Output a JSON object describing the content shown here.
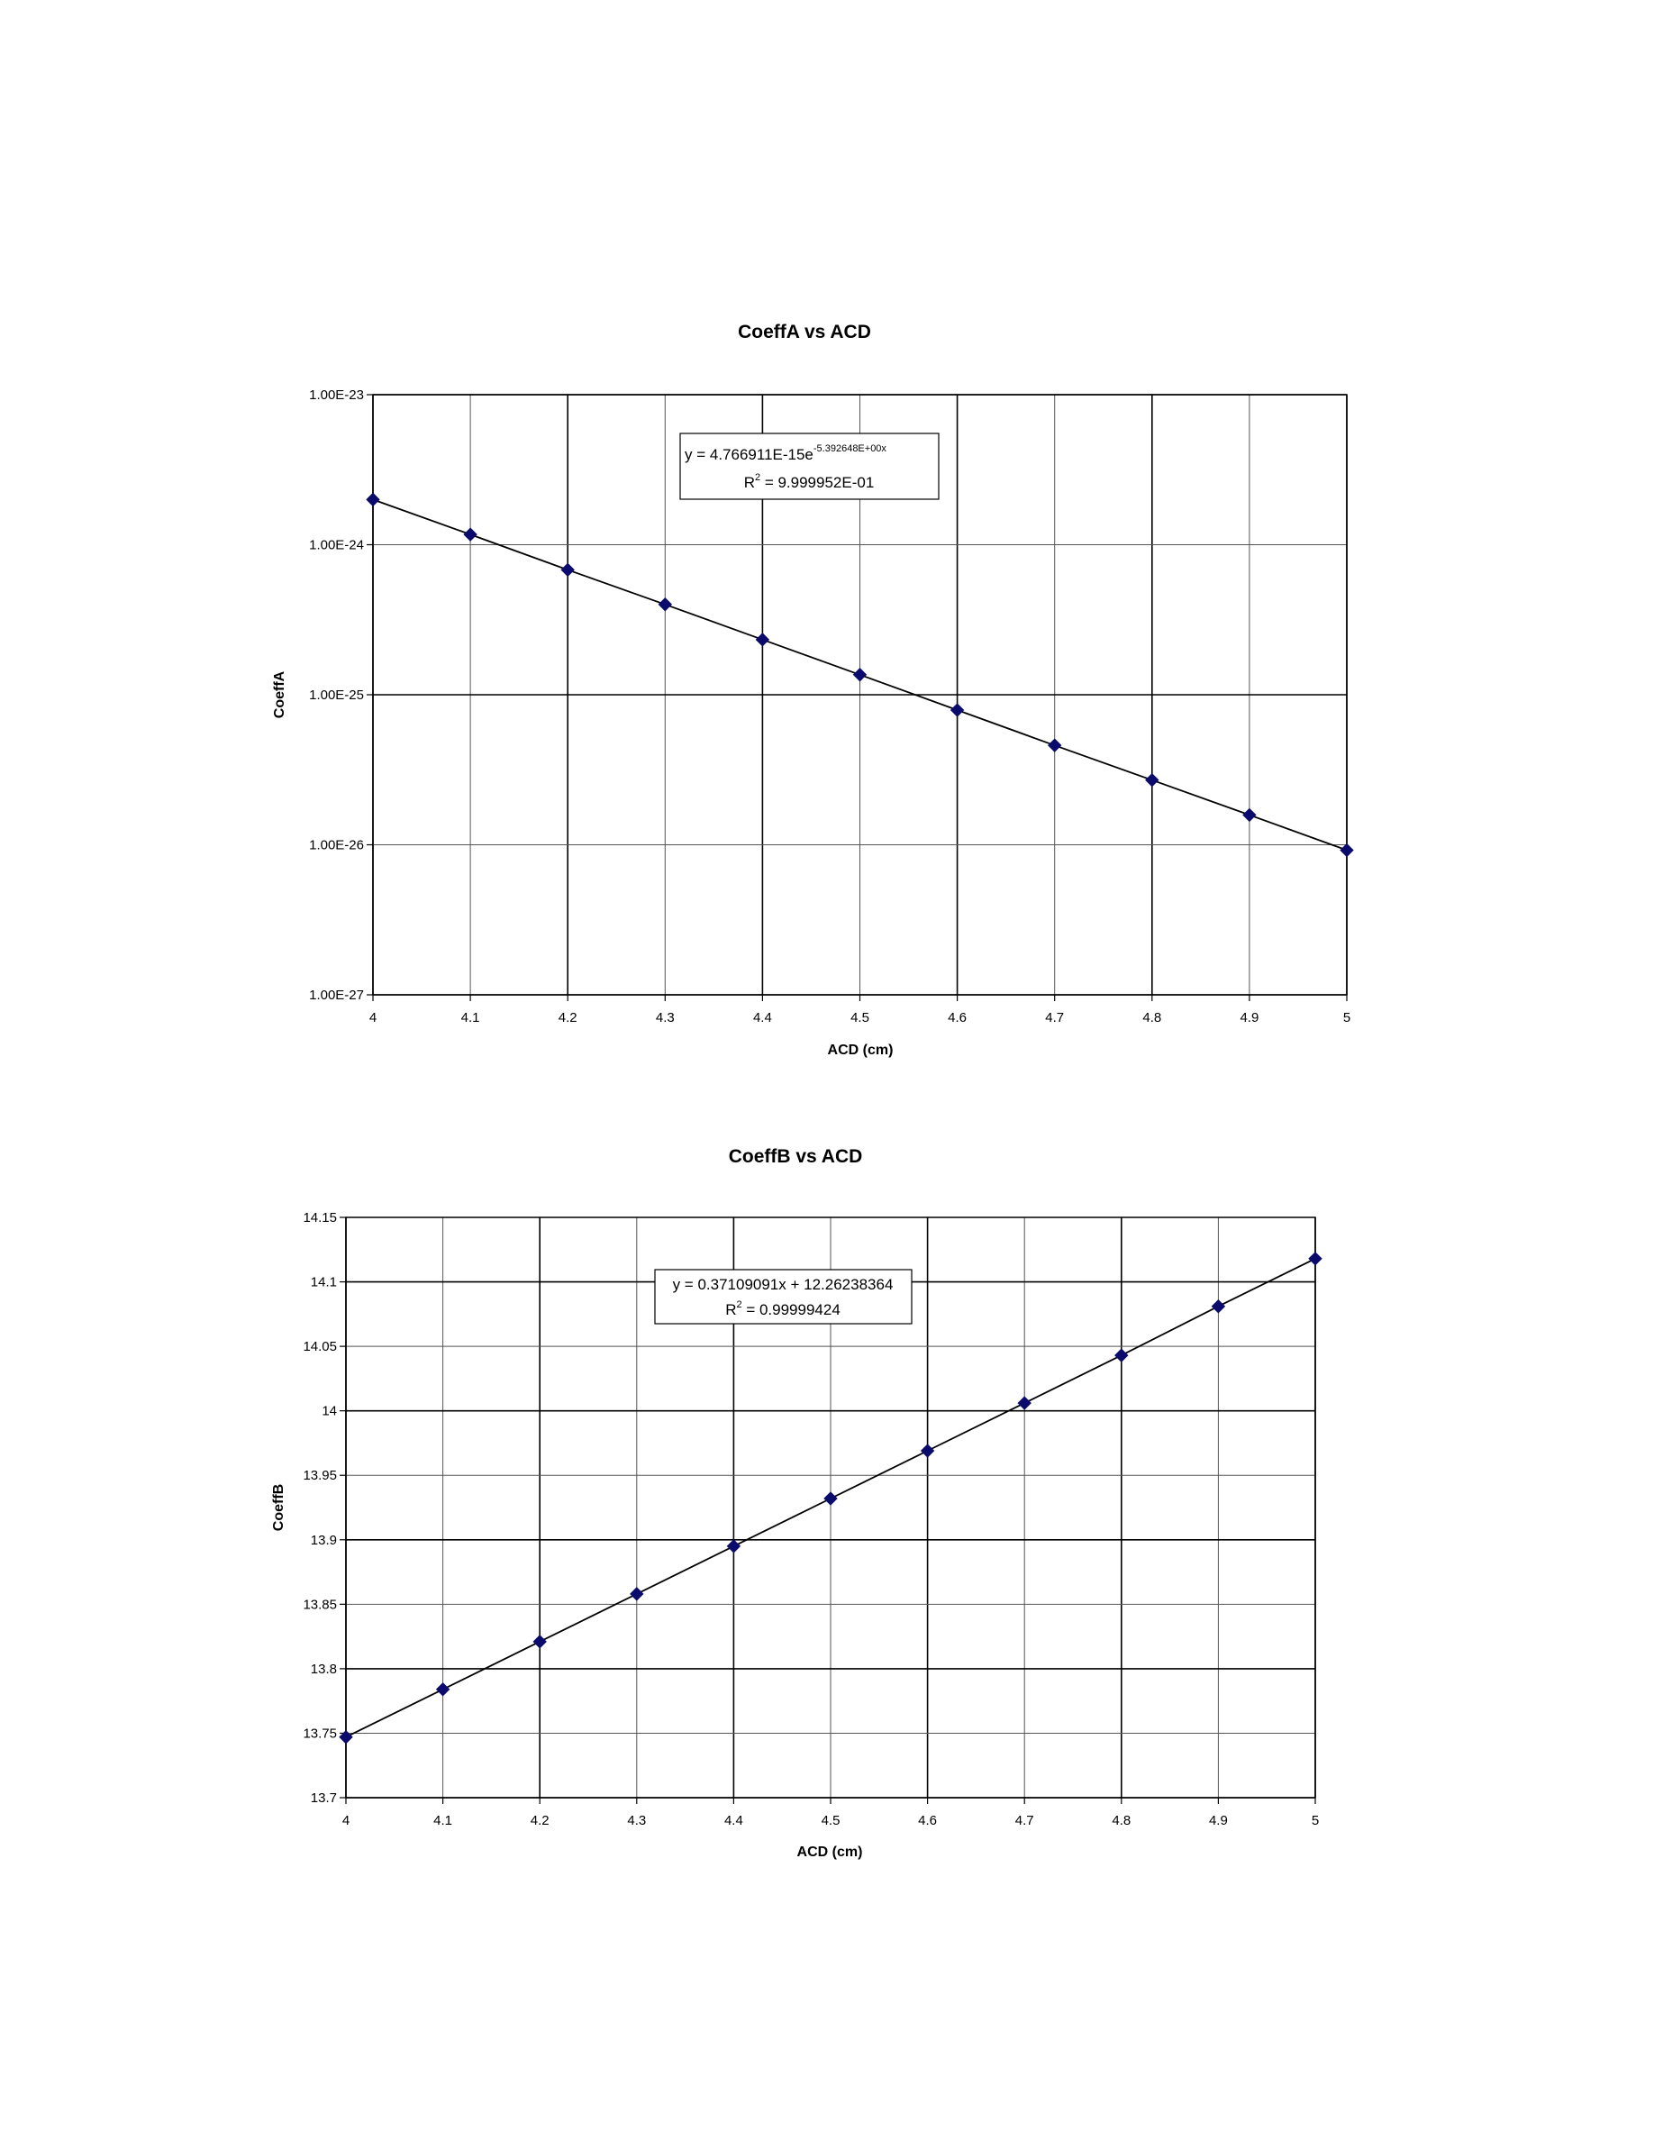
{
  "chart_data": [
    {
      "type": "scatter",
      "title": "CoeffA vs ACD",
      "xlabel": "ACD (cm)",
      "ylabel": "CoeffA",
      "yscale": "log",
      "xlim": [
        4,
        5
      ],
      "ylim": [
        1e-27,
        1e-23
      ],
      "x_ticks": [
        "4",
        "4.1",
        "4.2",
        "4.3",
        "4.4",
        "4.5",
        "4.6",
        "4.7",
        "4.8",
        "4.9",
        "5"
      ],
      "y_ticks": [
        "1.00E-27",
        "1.00E-26",
        "1.00E-25",
        "1.00E-24",
        "1.00E-23"
      ],
      "grid": true,
      "marker_color": "#0b0b6e",
      "trendline": "exponential",
      "equation": {
        "main": "y = 4.766911E-15e",
        "exponent": "-5.392648E+00x",
        "r2_prefix": "R",
        "r2_sup": "2",
        "r2_value": " = 9.999952E-01"
      },
      "series": [
        {
          "x": [
            4.0,
            4.1,
            4.2,
            4.3,
            4.4,
            4.5,
            4.6,
            4.7,
            4.8,
            4.9,
            5.0
          ],
          "y": [
            2e-24,
            1.17e-24,
            6.8e-25,
            4e-25,
            2.33e-25,
            1.36e-25,
            7.9e-26,
            4.6e-26,
            2.7e-26,
            1.58e-26,
            9.2e-27
          ]
        }
      ]
    },
    {
      "type": "scatter",
      "title": "CoeffB vs ACD",
      "xlabel": "ACD (cm)",
      "ylabel": "CoeffB",
      "xlim": [
        4,
        5
      ],
      "ylim": [
        13.7,
        14.15
      ],
      "x_ticks": [
        "4",
        "4.1",
        "4.2",
        "4.3",
        "4.4",
        "4.5",
        "4.6",
        "4.7",
        "4.8",
        "4.9",
        "5"
      ],
      "y_ticks": [
        "13.7",
        "13.75",
        "13.8",
        "13.85",
        "13.9",
        "13.95",
        "14",
        "14.05",
        "14.1",
        "14.15"
      ],
      "grid": true,
      "marker_color": "#0b0b6e",
      "trendline": "linear",
      "equation": {
        "main": "y = 0.37109091x + 12.26238364",
        "exponent": "",
        "r2_prefix": "R",
        "r2_sup": "2",
        "r2_value": " = 0.99999424"
      },
      "series": [
        {
          "x": [
            4.0,
            4.1,
            4.2,
            4.3,
            4.4,
            4.5,
            4.6,
            4.7,
            4.8,
            4.9,
            5.0
          ],
          "y": [
            13.747,
            13.784,
            13.821,
            13.858,
            13.895,
            13.932,
            13.969,
            14.006,
            14.043,
            14.081,
            14.118
          ]
        }
      ]
    }
  ]
}
